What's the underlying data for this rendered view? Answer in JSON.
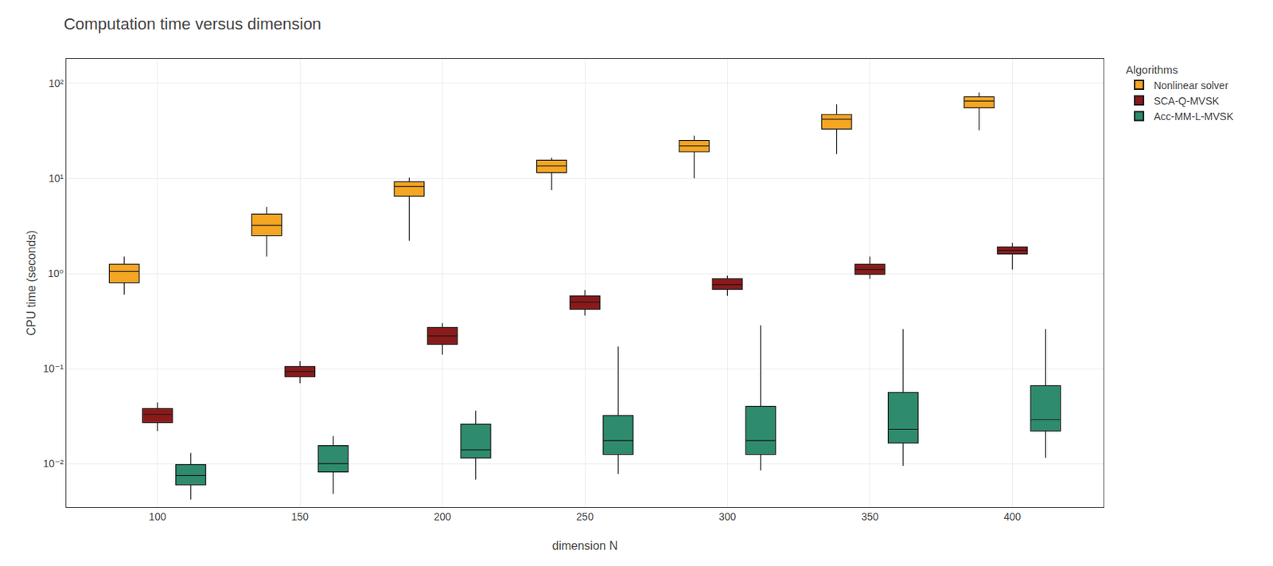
{
  "chart_data": {
    "type": "box",
    "title": "Computation time versus dimension",
    "x_label": "dimension N",
    "y_label": "CPU time (seconds)",
    "legend_title": "Algorithms",
    "x": [
      100,
      150,
      200,
      250,
      300,
      350,
      400
    ],
    "xlim": [
      68,
      432
    ],
    "xticks": [
      100,
      150,
      200,
      250,
      300,
      350,
      400
    ],
    "ylim": [
      0.0035,
      180
    ],
    "yticks": [
      {
        "value": 0.01,
        "label": "10⁻²"
      },
      {
        "value": 0.1,
        "label": "10⁻¹"
      },
      {
        "value": 1,
        "label": "10⁰"
      },
      {
        "value": 10,
        "label": "10¹"
      },
      {
        "value": 100,
        "label": "10²"
      }
    ],
    "log": "y",
    "grid": true,
    "legend": "right",
    "series": [
      {
        "name": "Nonlinear solver",
        "color": "#F5A623",
        "q1": [
          0.8,
          2.5,
          6.5,
          11.5,
          19.0,
          33.0,
          55.0
        ],
        "median": [
          1.05,
          3.2,
          8.2,
          13.5,
          22.0,
          42.0,
          65.0
        ],
        "q3": [
          1.25,
          4.2,
          9.2,
          15.5,
          25.0,
          47.0,
          72.0
        ],
        "whislo": [
          0.6,
          1.5,
          2.2,
          7.5,
          10.0,
          18.0,
          32.0
        ],
        "whishi": [
          1.5,
          5.0,
          10.2,
          16.5,
          28.0,
          60.0,
          80.0
        ]
      },
      {
        "name": "SCA-Q-MVSK",
        "color": "#8B1A1A",
        "q1": [
          0.027,
          0.082,
          0.18,
          0.42,
          0.68,
          0.98,
          1.6
        ],
        "median": [
          0.033,
          0.093,
          0.22,
          0.5,
          0.76,
          1.1,
          1.75
        ],
        "q3": [
          0.038,
          0.105,
          0.27,
          0.58,
          0.88,
          1.25,
          1.9
        ],
        "whislo": [
          0.022,
          0.07,
          0.14,
          0.36,
          0.58,
          0.88,
          1.1
        ],
        "whishi": [
          0.044,
          0.12,
          0.3,
          0.67,
          0.95,
          1.5,
          2.1
        ]
      },
      {
        "name": "Acc-MM-L-MVSK",
        "color": "#2E8B6E",
        "q1": [
          0.006,
          0.0082,
          0.0115,
          0.0125,
          0.0125,
          0.0165,
          0.022
        ],
        "median": [
          0.0075,
          0.01,
          0.014,
          0.0175,
          0.0175,
          0.023,
          0.029
        ],
        "q3": [
          0.0098,
          0.0155,
          0.026,
          0.032,
          0.04,
          0.056,
          0.066
        ],
        "whislo": [
          0.0042,
          0.0048,
          0.0068,
          0.0078,
          0.0085,
          0.0095,
          0.0115
        ],
        "whishi": [
          0.013,
          0.0195,
          0.036,
          0.17,
          0.285,
          0.26,
          0.26
        ]
      }
    ]
  }
}
